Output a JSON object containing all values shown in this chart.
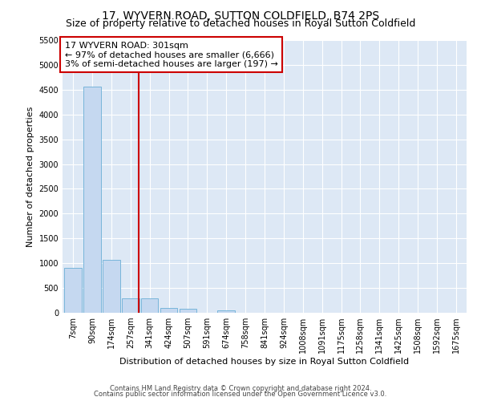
{
  "title": "17, WYVERN ROAD, SUTTON COLDFIELD, B74 2PS",
  "subtitle": "Size of property relative to detached houses in Royal Sutton Coldfield",
  "xlabel": "Distribution of detached houses by size in Royal Sutton Coldfield",
  "ylabel": "Number of detached properties",
  "footnote1": "Contains HM Land Registry data © Crown copyright and database right 2024.",
  "footnote2": "Contains public sector information licensed under the Open Government Licence v3.0.",
  "bar_labels": [
    "7sqm",
    "90sqm",
    "174sqm",
    "257sqm",
    "341sqm",
    "424sqm",
    "507sqm",
    "591sqm",
    "674sqm",
    "758sqm",
    "841sqm",
    "924sqm",
    "1008sqm",
    "1091sqm",
    "1175sqm",
    "1258sqm",
    "1341sqm",
    "1425sqm",
    "1508sqm",
    "1592sqm",
    "1675sqm"
  ],
  "bar_values": [
    900,
    4560,
    1070,
    295,
    290,
    90,
    80,
    0,
    55,
    0,
    0,
    0,
    0,
    0,
    0,
    0,
    0,
    0,
    0,
    0,
    0
  ],
  "bar_color": "#c5d8f0",
  "bar_edge_color": "#6aaed6",
  "vline_x_index": 3.42,
  "annotation_text_line1": "17 WYVERN ROAD: 301sqm",
  "annotation_text_line2": "← 97% of detached houses are smaller (6,666)",
  "annotation_text_line3": "3% of semi-detached houses are larger (197) →",
  "annotation_box_color": "#ffffff",
  "annotation_box_edge": "#cc0000",
  "vline_color": "#cc0000",
  "ylim": [
    0,
    5500
  ],
  "yticks": [
    0,
    500,
    1000,
    1500,
    2000,
    2500,
    3000,
    3500,
    4000,
    4500,
    5000,
    5500
  ],
  "bg_color": "#dde8f5",
  "title_fontsize": 10,
  "subtitle_fontsize": 9,
  "axis_label_fontsize": 8,
  "tick_fontsize": 7,
  "annotation_fontsize": 8,
  "footnote_fontsize": 6
}
